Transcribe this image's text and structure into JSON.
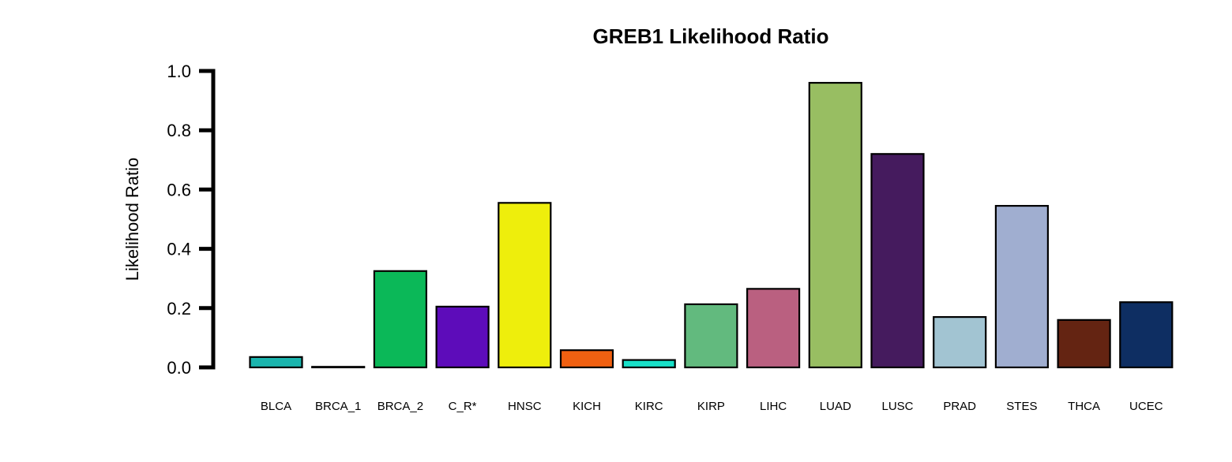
{
  "chart_data": {
    "type": "bar",
    "title": "GREB1 Likelihood Ratio",
    "xlabel": "",
    "ylabel": "Likelihood Ratio",
    "ylim": [
      0,
      1.0
    ],
    "yticks": [
      "0.0",
      "0.2",
      "0.4",
      "0.6",
      "0.8",
      "1.0"
    ],
    "grid": false,
    "categories": [
      "BLCA",
      "BRCA_1",
      "BRCA_2",
      "C_R*",
      "HNSC",
      "KICH",
      "KIRC",
      "KIRP",
      "LIHC",
      "LUAD",
      "LUSC",
      "PRAD",
      "STES",
      "THCA",
      "UCEC"
    ],
    "values": [
      0.035,
      0.002,
      0.325,
      0.205,
      0.555,
      0.058,
      0.025,
      0.213,
      0.265,
      0.96,
      0.72,
      0.17,
      0.545,
      0.16,
      0.22
    ],
    "colors": [
      "#1AB5AE",
      "#6E0E11",
      "#0BB858",
      "#5D0CBA",
      "#EEEE0C",
      "#F06011",
      "#18E0C8",
      "#62BA7E",
      "#BA6080",
      "#98BE62",
      "#451B5E",
      "#A2C4D2",
      "#A0AED0",
      "#642412",
      "#0E2E62"
    ]
  }
}
